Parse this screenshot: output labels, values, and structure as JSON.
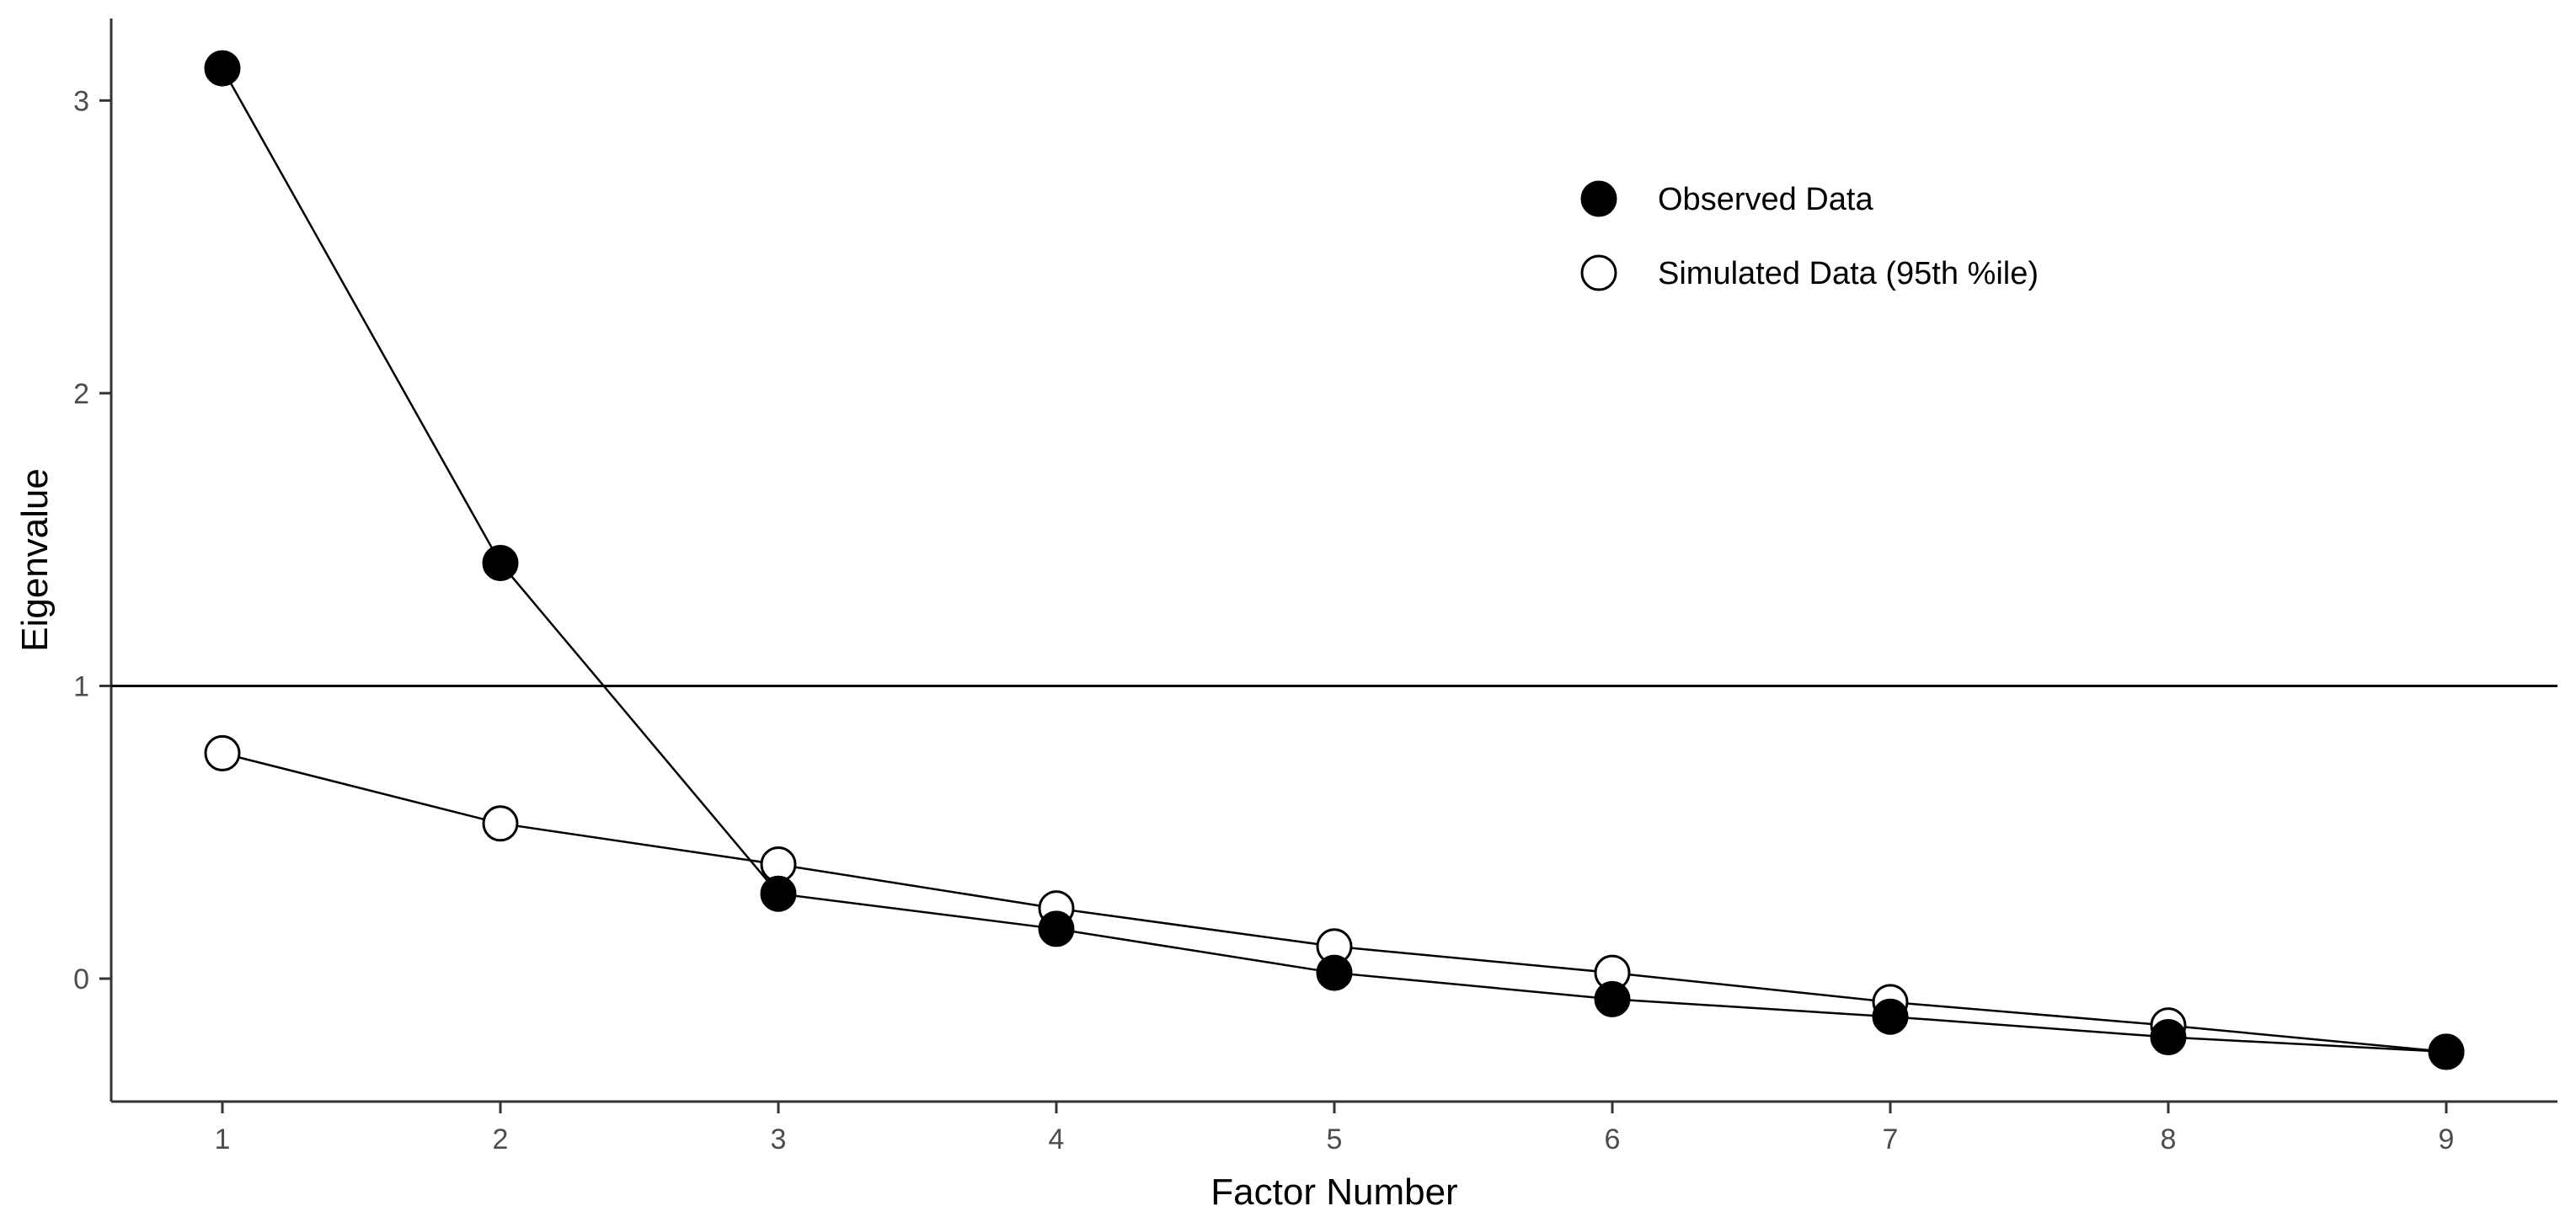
{
  "chart_data": {
    "type": "line",
    "x": [
      1,
      2,
      3,
      4,
      5,
      6,
      7,
      8,
      9
    ],
    "series": [
      {
        "name": "Observed Data",
        "marker": "filled-circle",
        "values": [
          3.11,
          1.42,
          0.29,
          0.17,
          0.02,
          -0.07,
          -0.13,
          -0.2,
          -0.25
        ]
      },
      {
        "name": "Simulated Data (95th %ile)",
        "marker": "open-circle",
        "values": [
          0.77,
          0.53,
          0.39,
          0.24,
          0.11,
          0.02,
          -0.08,
          -0.16,
          -0.25
        ]
      }
    ],
    "xlabel": "Factor Number",
    "ylabel": "Eigenvalue",
    "xlim": [
      0.6,
      9.4
    ],
    "ylim": [
      -0.42,
      3.28
    ],
    "xticks": [
      1,
      2,
      3,
      4,
      5,
      6,
      7,
      8,
      9
    ],
    "yticks": [
      0,
      1,
      2,
      3
    ],
    "reference_line": {
      "y": 1
    },
    "grid": false,
    "legend_position": "top-right"
  },
  "colors": {
    "line": "#000000",
    "marker_fill_observed": "#000000",
    "marker_fill_simulated": "#ffffff",
    "axis": "#333333",
    "tick_label": "#4d4d4d"
  }
}
